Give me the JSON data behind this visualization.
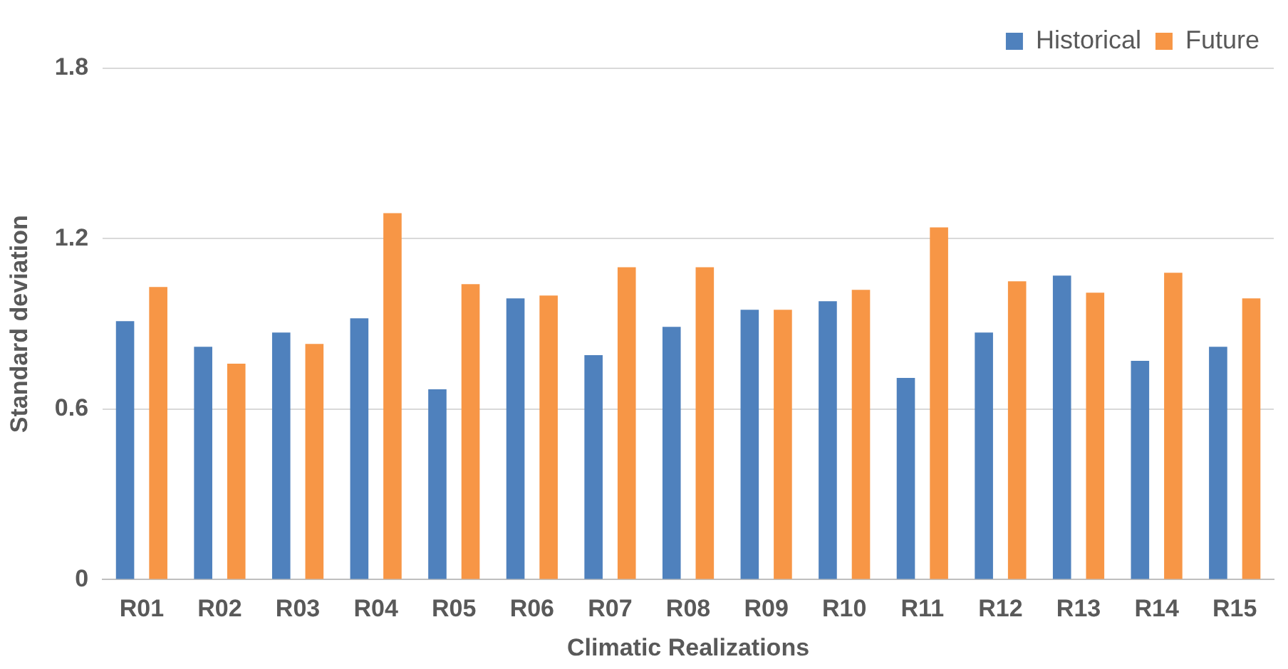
{
  "chart_data": {
    "type": "bar",
    "xlabel": "Climatic Realizations",
    "ylabel": "Standard deviation",
    "categories": [
      "R01",
      "R02",
      "R03",
      "R04",
      "R05",
      "R06",
      "R07",
      "R08",
      "R09",
      "R10",
      "R11",
      "R12",
      "R13",
      "R14",
      "R15"
    ],
    "series": [
      {
        "name": "Historical",
        "color": "#4f81bd",
        "values": [
          0.91,
          0.82,
          0.87,
          0.92,
          0.67,
          0.99,
          0.79,
          0.89,
          0.95,
          0.98,
          0.71,
          0.87,
          1.07,
          0.77,
          0.82
        ]
      },
      {
        "name": "Future",
        "color": "#f79646",
        "values": [
          1.03,
          0.76,
          0.83,
          1.29,
          1.04,
          1.0,
          1.1,
          1.1,
          0.95,
          1.02,
          1.24,
          1.05,
          1.01,
          1.08,
          0.99
        ]
      }
    ],
    "ylim": [
      0,
      1.8
    ],
    "yticks": [
      0,
      0.6,
      1.2,
      1.8
    ],
    "grid": "y",
    "legend": "top right"
  }
}
